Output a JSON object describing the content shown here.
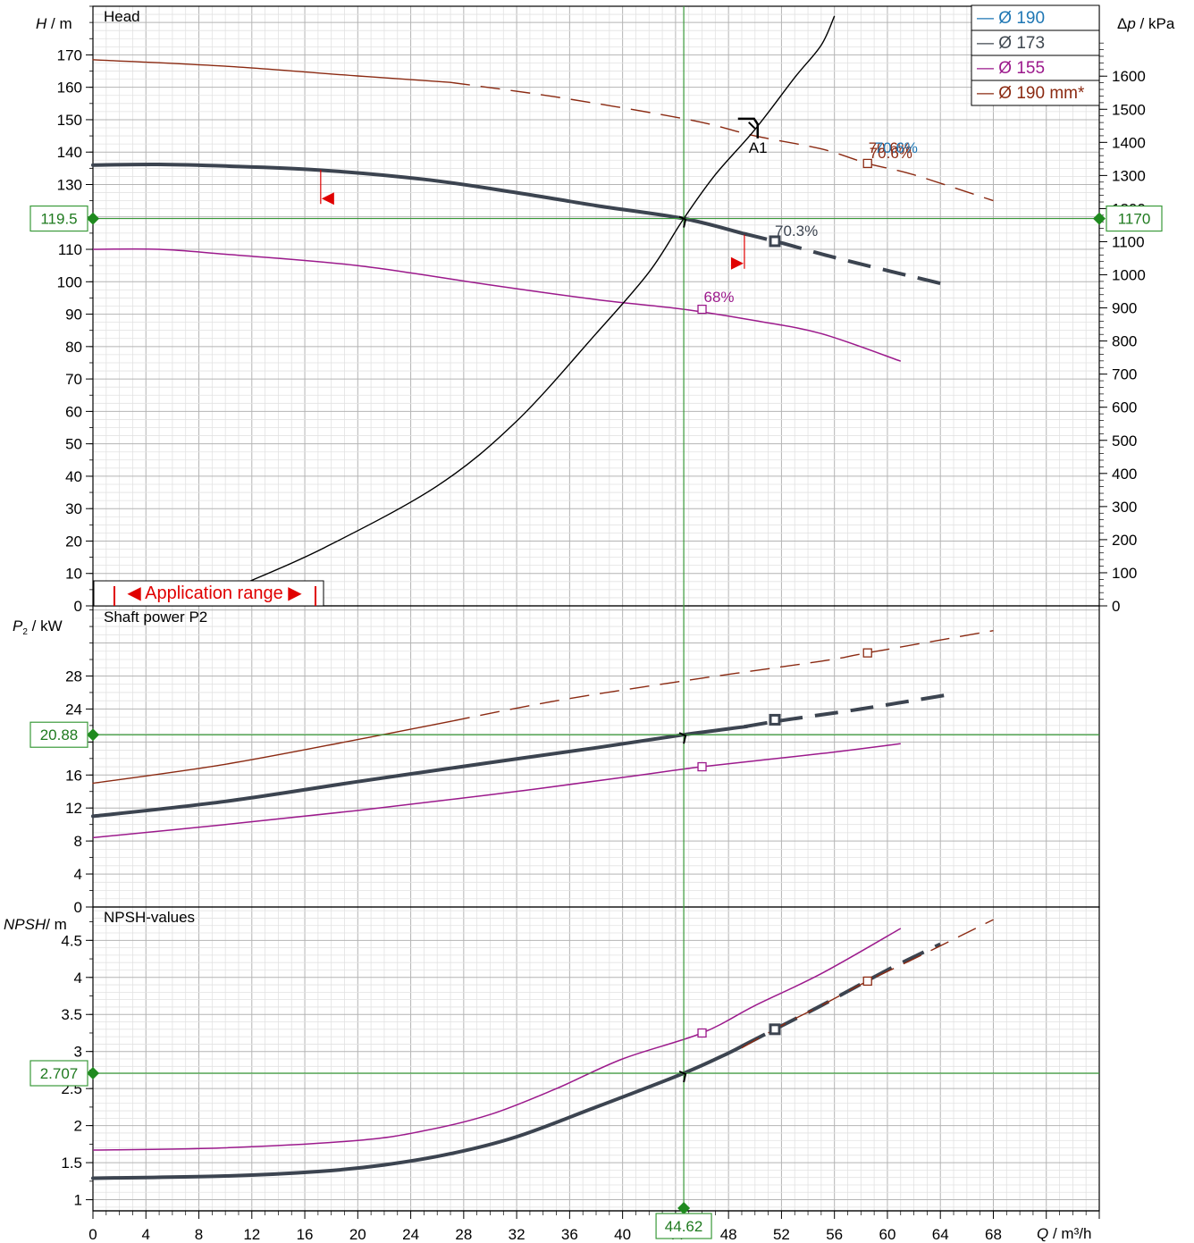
{
  "chart_data": {
    "type": "line",
    "x": {
      "label": "Q",
      "unit": "/ m³/h",
      "range": [
        0,
        76
      ],
      "ticks": [
        "0",
        "4",
        "8",
        "12",
        "16",
        "20",
        "24",
        "28",
        "32",
        "36",
        "40",
        "44",
        "48",
        "52",
        "56",
        "60",
        "64",
        "68"
      ],
      "cursor_value": "44.62"
    },
    "legend": {
      "position": "top-right",
      "entries": [
        {
          "label": "— Ø 190",
          "color": "#1f77b4"
        },
        {
          "label": "— Ø 173",
          "color": "#404850"
        },
        {
          "label": "— Ø 155",
          "color": "#9c1a8c"
        },
        {
          "label": "— Ø 190 mm*",
          "color": "#8b2a12"
        }
      ]
    },
    "colors": {
      "d190": "#1f77b4",
      "d173": "#3c4450",
      "d155": "#9c1a8c",
      "d190mm": "#8b2a12",
      "cursor": "#3a9a3a",
      "range": "#e00000",
      "system": "#000000"
    },
    "head": {
      "title": "Head",
      "ylabel": "H",
      "yunit": "/ m",
      "ylim": [
        0,
        185
      ],
      "yticks": [
        "0",
        "10",
        "20",
        "30",
        "40",
        "50",
        "60",
        "70",
        "80",
        "90",
        "100",
        "110",
        "120",
        "130",
        "140",
        "150",
        "160",
        "170"
      ],
      "right_label": "Δp",
      "right_unit": "/ kPa",
      "right_ticks": [
        "0",
        "100",
        "200",
        "300",
        "400",
        "500",
        "600",
        "700",
        "800",
        "900",
        "1000",
        "1100",
        "1200",
        "1300",
        "1400",
        "1500",
        "1600"
      ],
      "cursor_value": "119.5",
      "cursor_right_value": "1170",
      "operating_point_label": "A1",
      "application_range_label": "◀ Application range ▶",
      "series": [
        {
          "key": "d190mm",
          "points": [
            [
              0,
              168.5
            ],
            [
              10,
              166.5
            ],
            [
              20,
              163.5
            ],
            [
              27,
              161.5
            ],
            [
              35,
              157
            ],
            [
              45,
              150
            ],
            [
              50,
              145
            ],
            [
              55,
              141
            ],
            [
              58.5,
              136.5
            ],
            [
              62,
              133
            ],
            [
              68,
              125
            ]
          ],
          "solid_until": 27
        },
        {
          "key": "d173",
          "points": [
            [
              0,
              136
            ],
            [
              5,
              136.2
            ],
            [
              10,
              135.7
            ],
            [
              17,
              134.5
            ],
            [
              25,
              131.6
            ],
            [
              32,
              127.5
            ],
            [
              38,
              123.5
            ],
            [
              44.62,
              119.5
            ],
            [
              49,
              115
            ],
            [
              52,
              112
            ],
            [
              56,
              107.5
            ],
            [
              64.5,
              99
            ]
          ],
          "solid_until": 49.2
        },
        {
          "key": "d155",
          "points": [
            [
              0,
              110
            ],
            [
              5,
              110
            ],
            [
              10,
              108.5
            ],
            [
              20,
              105
            ],
            [
              30,
              99
            ],
            [
              38,
              94.5
            ],
            [
              44.62,
              91.5
            ],
            [
              50,
              88
            ],
            [
              55,
              84
            ],
            [
              61,
              75.5
            ]
          ]
        },
        {
          "key": "system",
          "points": [
            [
              11.5,
              7
            ],
            [
              17.5,
              18
            ],
            [
              26,
              37
            ],
            [
              32,
              57
            ],
            [
              38,
              84
            ],
            [
              42,
              103
            ],
            [
              44.62,
              119.5
            ],
            [
              47,
              133
            ],
            [
              50,
              147
            ],
            [
              53,
              163
            ],
            [
              55,
              173
            ],
            [
              56,
              182
            ]
          ]
        }
      ],
      "markers": [
        {
          "key": "d190mm",
          "x": 58.5,
          "y": 136.5,
          "label": "70.6%"
        },
        {
          "key": "d173",
          "x": 51.5,
          "y": 112.5,
          "label": "70.3%"
        },
        {
          "key": "d155",
          "x": 46,
          "y": 91.5,
          "label": "68%"
        }
      ],
      "overlap_labels": [
        {
          "text": "70.6%",
          "color": "#8b2a12"
        },
        {
          "text": "70.6%",
          "color": "#1f77b4"
        }
      ]
    },
    "power": {
      "title": "Shaft power P2",
      "ylabel": "P",
      "ysub": "2",
      "yunit": "/ kW",
      "ylim": [
        0,
        36.5
      ],
      "yticks": [
        "0",
        "4",
        "8",
        "12",
        "16",
        "20",
        "24",
        "28"
      ],
      "cursor_value": "20.88",
      "series": [
        {
          "key": "d190mm",
          "points": [
            [
              0,
              15
            ],
            [
              10,
              17.3
            ],
            [
              20,
              20.3
            ],
            [
              27,
              22.5
            ],
            [
              35,
              25
            ],
            [
              45,
              27.5
            ],
            [
              55,
              29.8
            ],
            [
              58.5,
              30.8
            ],
            [
              68,
              33.5
            ]
          ],
          "solid_until": 27
        },
        {
          "key": "d173",
          "points": [
            [
              0,
              11
            ],
            [
              10,
              12.8
            ],
            [
              20,
              15.2
            ],
            [
              30,
              17.5
            ],
            [
              38,
              19.3
            ],
            [
              44.62,
              20.88
            ],
            [
              49,
              21.8
            ],
            [
              52,
              22.6
            ],
            [
              58,
              24
            ],
            [
              64.5,
              25.7
            ]
          ],
          "solid_until": 49.2
        },
        {
          "key": "d155",
          "points": [
            [
              0,
              8.4
            ],
            [
              10,
              10
            ],
            [
              20,
              11.7
            ],
            [
              30,
              13.6
            ],
            [
              40,
              15.7
            ],
            [
              46,
              17
            ],
            [
              55,
              18.6
            ],
            [
              61,
              19.8
            ]
          ]
        }
      ],
      "markers": [
        {
          "key": "d190mm",
          "x": 58.5,
          "y": 30.8
        },
        {
          "key": "d173",
          "x": 51.5,
          "y": 22.7
        },
        {
          "key": "d155",
          "x": 46,
          "y": 17
        }
      ]
    },
    "npsh": {
      "title": "NPSH-values",
      "ylabel": "NPSH",
      "yunit": "/ m",
      "ylim": [
        0.85,
        4.95
      ],
      "yticks": [
        "1",
        "1.5",
        "2",
        "2.5",
        "3",
        "3.5",
        "4",
        "4.5"
      ],
      "cursor_value": "2.707",
      "series": [
        {
          "key": "d155",
          "points": [
            [
              0,
              1.67
            ],
            [
              10,
              1.7
            ],
            [
              20,
              1.8
            ],
            [
              25,
              1.93
            ],
            [
              30,
              2.15
            ],
            [
              35,
              2.5
            ],
            [
              40,
              2.9
            ],
            [
              46,
              3.25
            ],
            [
              50,
              3.62
            ],
            [
              55,
              4.05
            ],
            [
              61,
              4.66
            ]
          ]
        },
        {
          "key": "d173",
          "points": [
            [
              0,
              1.29
            ],
            [
              10,
              1.32
            ],
            [
              17,
              1.38
            ],
            [
              22,
              1.47
            ],
            [
              27,
              1.62
            ],
            [
              32,
              1.85
            ],
            [
              38,
              2.25
            ],
            [
              44.62,
              2.707
            ],
            [
              48,
              2.98
            ],
            [
              51.5,
              3.3
            ],
            [
              55,
              3.62
            ],
            [
              60,
              4.1
            ],
            [
              64,
              4.45
            ]
          ],
          "solid_until": 49.2
        },
        {
          "key": "d190mm",
          "points": [
            [
              49,
              3.05
            ],
            [
              52,
              3.35
            ],
            [
              55,
              3.62
            ],
            [
              58.5,
              3.95
            ],
            [
              62,
              4.25
            ],
            [
              68,
              4.78
            ]
          ]
        }
      ],
      "markers": [
        {
          "key": "d155",
          "x": 46,
          "y": 3.25
        },
        {
          "key": "d173",
          "x": 51.5,
          "y": 3.3
        },
        {
          "key": "d190mm",
          "x": 58.5,
          "y": 3.95
        }
      ]
    }
  }
}
